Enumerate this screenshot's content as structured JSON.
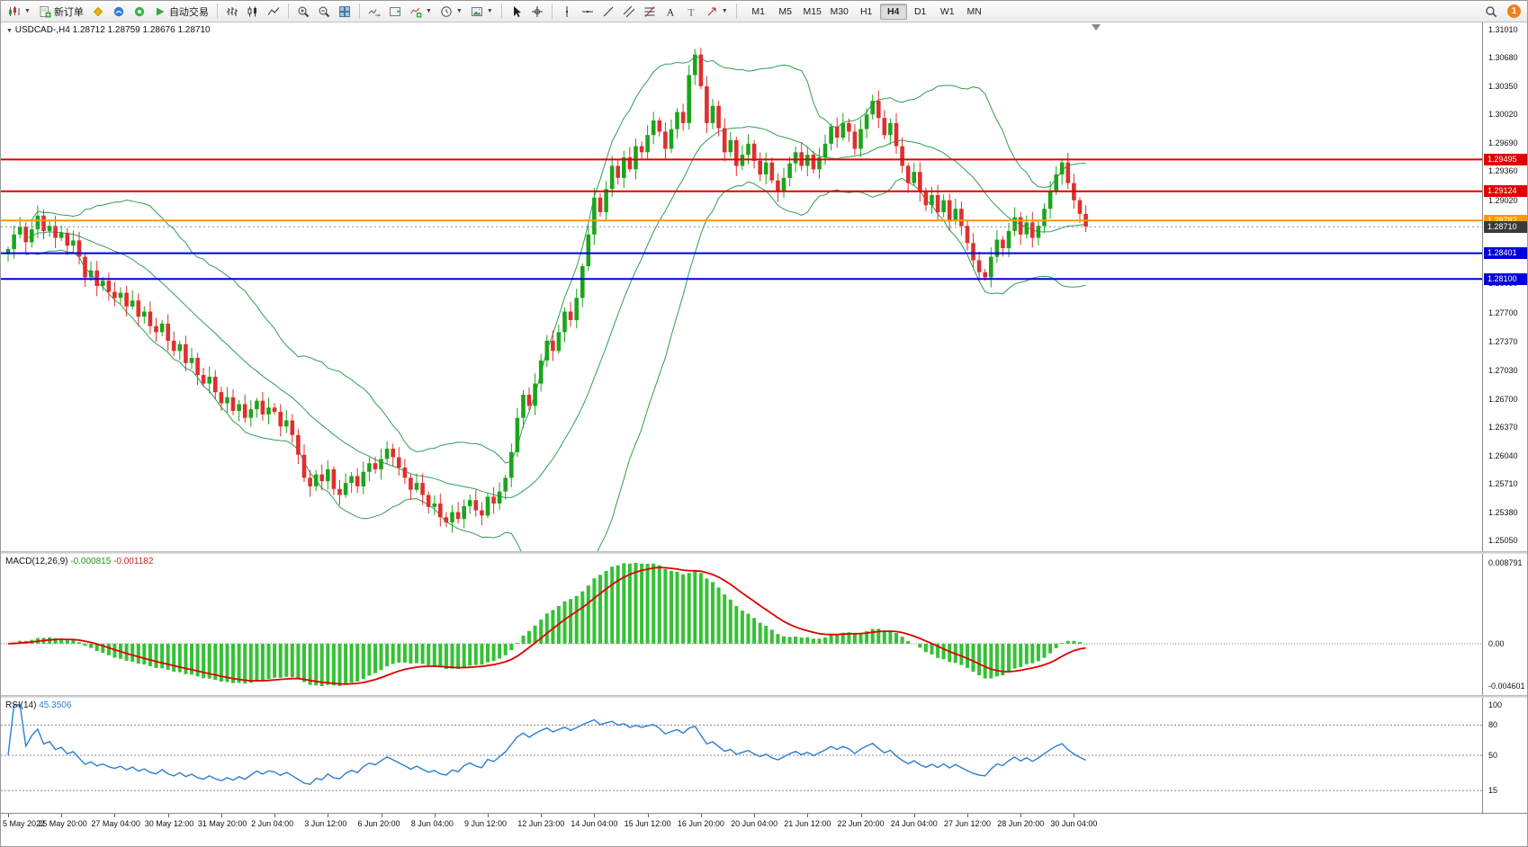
{
  "toolbar": {
    "new_order": "新订单",
    "auto_trading": "自动交易",
    "timeframes": [
      "M1",
      "M5",
      "M15",
      "M30",
      "H1",
      "H4",
      "D1",
      "W1",
      "MN"
    ],
    "active_timeframe": "H4",
    "notification_count": "1"
  },
  "chart": {
    "symbol_tf": "USDCAD-,H4",
    "open": "1.28712",
    "high": "1.28759",
    "low": "1.28676",
    "close": "1.28710"
  },
  "macd": {
    "title": "MACD(12,26,9)",
    "value_main": "-0.000815",
    "value_signal": "-0.001182",
    "scale": [
      {
        "label": "0.008791",
        "v": 0.008791
      },
      {
        "label": "0.00",
        "v": 0
      },
      {
        "label": "-0.004601",
        "v": -0.004601
      }
    ]
  },
  "rsi": {
    "title": "RSI(14)",
    "value": "45.3506",
    "levels": [
      {
        "label": "100",
        "v": 100,
        "line": false
      },
      {
        "label": "80",
        "v": 80,
        "line": true
      },
      {
        "label": "50",
        "v": 50,
        "line": true
      },
      {
        "label": "15",
        "v": 15,
        "line": true
      }
    ]
  },
  "chart_data": {
    "type": "candlestick",
    "symbol": "USDCAD-",
    "timeframe": "H4",
    "price_min": 1.2505,
    "price_max": 1.3101,
    "y_ticks": [
      "1.31010",
      "1.30680",
      "1.30350",
      "1.30020",
      "1.29690",
      "1.29360",
      "1.29020",
      "1.28050",
      "1.27700",
      "1.27370",
      "1.27030",
      "1.26700",
      "1.26370",
      "1.26040",
      "1.25710",
      "1.25380",
      "1.25050"
    ],
    "levels": [
      {
        "price": 1.29495,
        "label": "1.29495",
        "color": "#e10000",
        "style": "line"
      },
      {
        "price": 1.29124,
        "label": "1.29124",
        "color": "#e10000",
        "style": "line"
      },
      {
        "price": 1.28782,
        "label": "1.28782",
        "color": "#ff9800",
        "style": "line"
      },
      {
        "price": 1.2871,
        "label": "1.28710",
        "color": "#3a3a3a",
        "style": "current"
      },
      {
        "price": 1.28401,
        "label": "1.28401",
        "color": "#0000dd",
        "style": "line"
      },
      {
        "price": 1.281,
        "label": "1.28100",
        "color": "#0000dd",
        "style": "line"
      }
    ],
    "colors": {
      "bull": "#1ca41c",
      "bear": "#df2f2f",
      "band": "#2f9e55"
    },
    "closes": [
      1.2845,
      1.2862,
      1.2871,
      1.2853,
      1.2868,
      1.2884,
      1.2866,
      1.2872,
      1.2858,
      1.2864,
      1.2849,
      1.2855,
      1.2836,
      1.2812,
      1.282,
      1.2802,
      1.2808,
      1.2795,
      1.2788,
      1.2794,
      1.2778,
      1.2785,
      1.2766,
      1.2772,
      1.2755,
      1.2748,
      1.2758,
      1.2738,
      1.2726,
      1.2734,
      1.2712,
      1.2718,
      1.2698,
      1.2688,
      1.2696,
      1.2678,
      1.2665,
      1.2672,
      1.2656,
      1.2664,
      1.2648,
      1.2658,
      1.2668,
      1.2652,
      1.266,
      1.2655,
      1.2638,
      1.2645,
      1.2628,
      1.2605,
      1.2578,
      1.2568,
      1.2582,
      1.2574,
      1.2588,
      1.2565,
      1.2558,
      1.2572,
      1.258,
      1.2568,
      1.2585,
      1.2595,
      1.2588,
      1.26,
      1.2612,
      1.2602,
      1.259,
      1.2578,
      1.2564,
      1.2572,
      1.2558,
      1.2544,
      1.2548,
      1.2532,
      1.2526,
      1.2538,
      1.253,
      1.2545,
      1.2552,
      1.254,
      1.2534,
      1.2556,
      1.2548,
      1.2562,
      1.2578,
      1.2608,
      1.2648,
      1.2675,
      1.2662,
      1.2688,
      1.2715,
      1.2738,
      1.2726,
      1.2748,
      1.2772,
      1.2762,
      1.2788,
      1.2825,
      1.2862,
      1.2905,
      1.2888,
      1.2915,
      1.2942,
      1.2928,
      1.2952,
      1.2938,
      1.2965,
      1.2958,
      1.2978,
      1.2995,
      1.2982,
      1.2962,
      1.2985,
      1.3005,
      1.2992,
      1.3048,
      1.3072,
      1.3035,
      1.2992,
      1.3012,
      1.2986,
      1.2958,
      1.2972,
      1.2942,
      1.2955,
      1.2968,
      1.2948,
      1.2932,
      1.2946,
      1.2925,
      1.2912,
      1.2928,
      1.2945,
      1.2958,
      1.2942,
      1.2955,
      1.2938,
      1.2952,
      1.2968,
      1.2988,
      1.2975,
      1.2992,
      1.2982,
      1.2962,
      1.2985,
      1.3002,
      1.3018,
      1.2998,
      1.2978,
      1.2992,
      1.2965,
      1.2942,
      1.2922,
      1.2935,
      1.2912,
      1.2896,
      1.2908,
      1.2888,
      1.2902,
      1.2878,
      1.2892,
      1.2872,
      1.2852,
      1.2832,
      1.2818,
      1.2812,
      1.2836,
      1.2856,
      1.2846,
      1.2866,
      1.2882,
      1.2862,
      1.2876,
      1.2858,
      1.2872,
      1.2892,
      1.2912,
      1.2932,
      1.2946,
      1.2922,
      1.2902,
      1.2886,
      1.2871
    ],
    "overlays": [
      {
        "name": "Bollinger Bands",
        "period": 20,
        "deviation": 2,
        "color": "#2f9e55"
      }
    ],
    "indicators": [
      {
        "name": "MACD",
        "params": [
          12,
          26,
          9
        ],
        "last_main": -0.000815,
        "last_signal": -0.001182,
        "scale": [
          0.008791,
          0,
          -0.004601
        ],
        "color_hist": "#35c135",
        "color_signal": "#e00000"
      },
      {
        "name": "RSI",
        "params": [
          14
        ],
        "last": 45.3506,
        "levels": [
          80,
          50,
          15
        ],
        "color": "#2a7fd4"
      }
    ],
    "x_labels": [
      {
        "t": "5 May 2022",
        "i": 0
      },
      {
        "t": "25 May 20:00",
        "i": 9
      },
      {
        "t": "27 May 04:00",
        "i": 18
      },
      {
        "t": "30 May 12:00",
        "i": 27
      },
      {
        "t": "31 May 20:00",
        "i": 36
      },
      {
        "t": "2 Jun 04:00",
        "i": 45
      },
      {
        "t": "3 Jun 12:00",
        "i": 54
      },
      {
        "t": "6 Jun 20:00",
        "i": 63
      },
      {
        "t": "8 Jun 04:00",
        "i": 72
      },
      {
        "t": "9 Jun 12:00",
        "i": 81
      },
      {
        "t": "12 Jun 23:00",
        "i": 90
      },
      {
        "t": "14 Jun 04:00",
        "i": 99
      },
      {
        "t": "15 Jun 12:00",
        "i": 108
      },
      {
        "t": "16 Jun 20:00",
        "i": 117
      },
      {
        "t": "20 Jun 04:00",
        "i": 126
      },
      {
        "t": "21 Jun 12:00",
        "i": 135
      },
      {
        "t": "22 Jun 20:00",
        "i": 144
      },
      {
        "t": "24 Jun 04:00",
        "i": 153
      },
      {
        "t": "27 Jun 12:00",
        "i": 162
      },
      {
        "t": "28 Jun 20:00",
        "i": 171
      },
      {
        "t": "30 Jun 04:00",
        "i": 180
      }
    ]
  }
}
